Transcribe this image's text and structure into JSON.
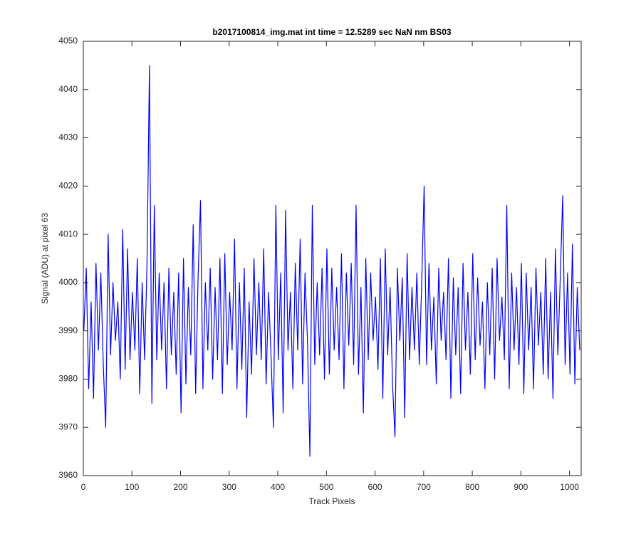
{
  "chart_data": {
    "type": "line",
    "title": "b2017100814_img.mat int time = 12.5289 sec  NaN nm BS03",
    "xlabel": "Track Pixels",
    "ylabel": "Signal (ADU) at pixel 63",
    "xlim": [
      0,
      1024
    ],
    "ylim": [
      3960,
      4050
    ],
    "xticks": [
      0,
      100,
      200,
      300,
      400,
      500,
      600,
      700,
      800,
      900,
      1000
    ],
    "yticks": [
      3960,
      3970,
      3980,
      3990,
      4000,
      4010,
      4020,
      4030,
      4040,
      4050
    ],
    "grid": false,
    "series": [
      {
        "color": "#0000ff",
        "x": [
          1,
          6,
          11,
          16,
          21,
          26,
          31,
          36,
          41,
          46,
          51,
          56,
          61,
          66,
          71,
          76,
          81,
          86,
          91,
          96,
          101,
          106,
          111,
          116,
          121,
          126,
          131,
          136,
          141,
          146,
          151,
          156,
          161,
          166,
          171,
          176,
          181,
          186,
          191,
          196,
          201,
          206,
          211,
          216,
          221,
          226,
          231,
          236,
          241,
          246,
          251,
          256,
          261,
          266,
          271,
          276,
          281,
          286,
          291,
          296,
          301,
          306,
          311,
          316,
          321,
          326,
          331,
          336,
          341,
          346,
          351,
          356,
          361,
          366,
          371,
          376,
          381,
          386,
          391,
          396,
          401,
          406,
          411,
          416,
          421,
          426,
          431,
          436,
          441,
          446,
          451,
          456,
          461,
          466,
          471,
          476,
          481,
          486,
          491,
          496,
          501,
          506,
          511,
          516,
          521,
          526,
          531,
          536,
          541,
          546,
          551,
          556,
          561,
          566,
          571,
          576,
          581,
          586,
          591,
          596,
          601,
          606,
          611,
          616,
          621,
          626,
          631,
          636,
          641,
          646,
          651,
          656,
          661,
          666,
          671,
          676,
          681,
          686,
          691,
          696,
          701,
          706,
          711,
          716,
          721,
          726,
          731,
          736,
          741,
          746,
          751,
          756,
          761,
          766,
          771,
          776,
          781,
          786,
          791,
          796,
          801,
          806,
          811,
          816,
          821,
          826,
          831,
          836,
          841,
          846,
          851,
          856,
          861,
          866,
          871,
          876,
          881,
          886,
          891,
          896,
          901,
          906,
          911,
          916,
          921,
          926,
          931,
          936,
          941,
          946,
          951,
          956,
          961,
          966,
          971,
          976,
          981,
          986,
          991,
          996,
          1001,
          1006,
          1011,
          1016,
          1021
        ],
        "values": [
          3990,
          4003,
          3978,
          3996,
          3976,
          4004,
          3986,
          4002,
          3983,
          3970,
          4010,
          3985,
          4000,
          3988,
          3996,
          3980,
          4011,
          3982,
          4007,
          3984,
          3998,
          3986,
          4005,
          3977,
          4000,
          3984,
          4004,
          4045,
          3975,
          4016,
          3984,
          4002,
          3986,
          4000,
          3978,
          4003,
          3985,
          3998,
          3981,
          4002,
          3973,
          4005,
          3979,
          3999,
          3985,
          4012,
          3977,
          4001,
          4017,
          3978,
          4000,
          3986,
          4003,
          3980,
          3999,
          3984,
          4005,
          3977,
          4006,
          3983,
          3998,
          3986,
          4009,
          3978,
          4000,
          3982,
          4003,
          3972,
          3996,
          3981,
          4005,
          3985,
          4000,
          3984,
          4007,
          3979,
          3998,
          3985,
          3970,
          4016,
          3984,
          4002,
          3973,
          4015,
          3986,
          3998,
          3978,
          4004,
          3986,
          4009,
          3979,
          4002,
          3988,
          3964,
          4016,
          3983,
          4000,
          3985,
          4003,
          3980,
          4007,
          3981,
          4003,
          3986,
          3999,
          3984,
          4006,
          3978,
          4002,
          3987,
          4004,
          3983,
          4016,
          3981,
          3999,
          3973,
          4005,
          3984,
          4002,
          3988,
          3997,
          3982,
          4005,
          3976,
          4007,
          3985,
          3999,
          3979,
          3968,
          4003,
          3988,
          4001,
          3972,
          4006,
          3984,
          3999,
          3986,
          4002,
          3983,
          4000,
          4020,
          3983,
          4004,
          3986,
          3997,
          3979,
          4003,
          3988,
          3998,
          3984,
          4005,
          3976,
          4001,
          3985,
          3999,
          3977,
          4004,
          3986,
          3998,
          3981,
          4006,
          3984,
          4001,
          3987,
          3996,
          3978,
          4000,
          3985,
          4003,
          3980,
          4005,
          3988,
          3997,
          3984,
          4016,
          3978,
          4002,
          3986,
          3999,
          3983,
          4004,
          3977,
          4002,
          3986,
          3999,
          3978,
          4003,
          3987,
          3998,
          3981,
          4005,
          3980,
          3998,
          3976,
          4007,
          3985,
          4001,
          4018,
          3983,
          4002,
          3981,
          4008,
          3979,
          3999,
          3986
        ]
      }
    ]
  }
}
